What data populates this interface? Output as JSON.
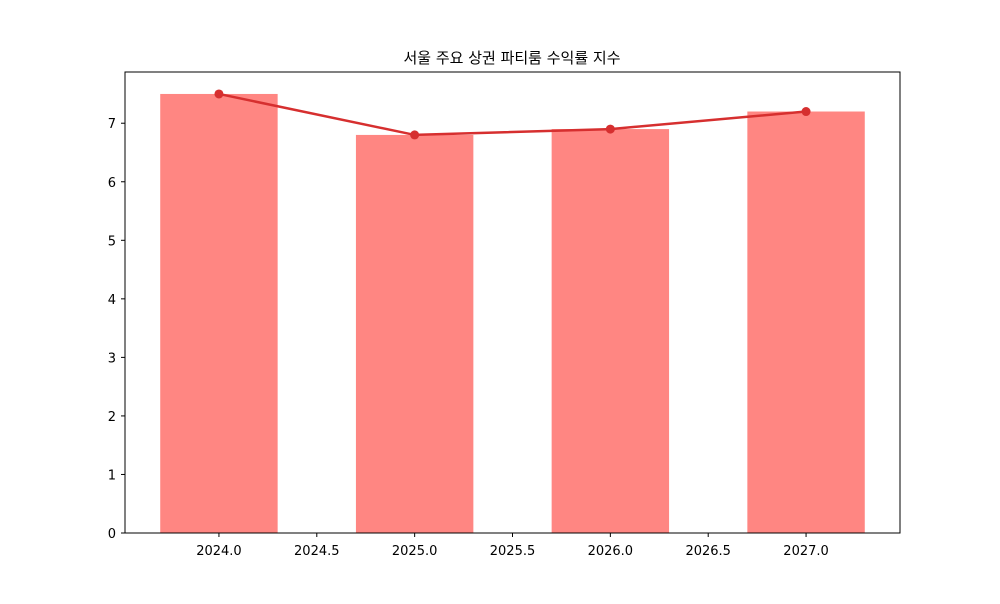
{
  "chart_data": {
    "type": "bar+line",
    "title": "서울 주요 상권 파티룸 수익률 지수",
    "xlabel": "",
    "ylabel": "",
    "x": [
      2024,
      2025,
      2026,
      2027
    ],
    "bar_values": [
      7.5,
      6.8,
      6.9,
      7.2
    ],
    "line_values": [
      7.5,
      6.8,
      6.9,
      7.2
    ],
    "bar_width": 0.6,
    "xlim": [
      2023.52,
      2027.48
    ],
    "ylim": [
      0,
      7.875
    ],
    "xticks": [
      "2024.0",
      "2024.5",
      "2025.0",
      "2025.5",
      "2026.0",
      "2026.5",
      "2027.0"
    ],
    "xtick_values": [
      2024,
      2024.5,
      2025,
      2025.5,
      2026,
      2026.5,
      2027
    ],
    "yticks": [
      "0",
      "1",
      "2",
      "3",
      "4",
      "5",
      "6",
      "7"
    ],
    "ytick_values": [
      0,
      1,
      2,
      3,
      4,
      5,
      6,
      7
    ],
    "grid": false,
    "colors": {
      "bar": "#ff8682",
      "line": "#d62f2f"
    }
  }
}
